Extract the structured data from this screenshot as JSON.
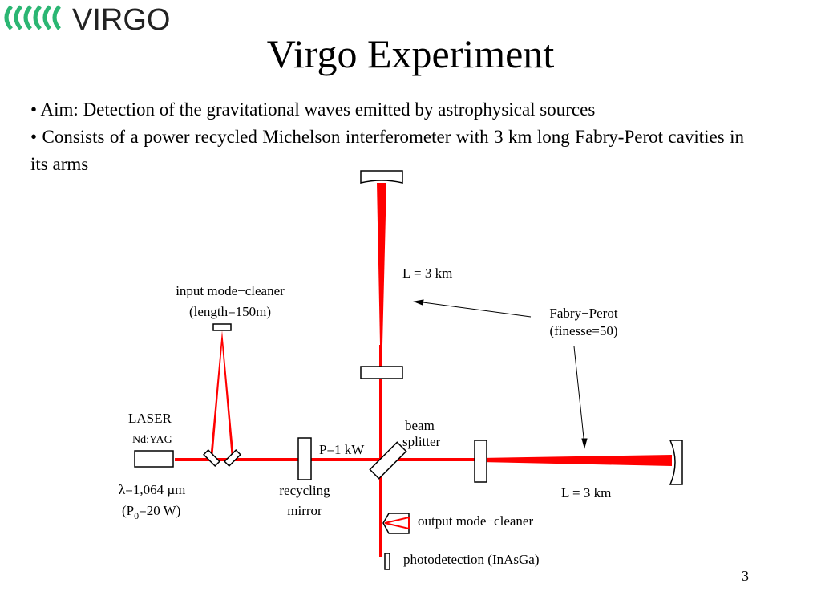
{
  "header": {
    "logo": "VIRGO",
    "title": "Virgo Experiment"
  },
  "bullets": [
    "Aim: Detection of the gravitational waves emitted by astrophysical sources",
    "Consists of a power recycled Michelson interferometer with 3 km long Fabry-Perot cavities in its arms"
  ],
  "diagram": {
    "arm_north_length": "L = 3 km",
    "arm_west_length": "L = 3 km",
    "input_mode_cleaner": [
      "input mode−cleaner",
      "(length=150m)"
    ],
    "fabry_perot": [
      "Fabry−Perot",
      "(finesse=50)"
    ],
    "laser": [
      "LASER",
      "Nd:YAG"
    ],
    "wavelength": "λ=1,064 µm",
    "laser_power": [
      "(P",
      "0",
      "=20 W)"
    ],
    "beam_splitter": [
      "beam",
      "splitter"
    ],
    "power": "P=1 kW",
    "recycling_mirror": [
      "recycling",
      "mirror"
    ],
    "output_mode_cleaner": "output mode−cleaner",
    "photodetection": "photodetection (InAsGa)"
  },
  "page_number": "3"
}
